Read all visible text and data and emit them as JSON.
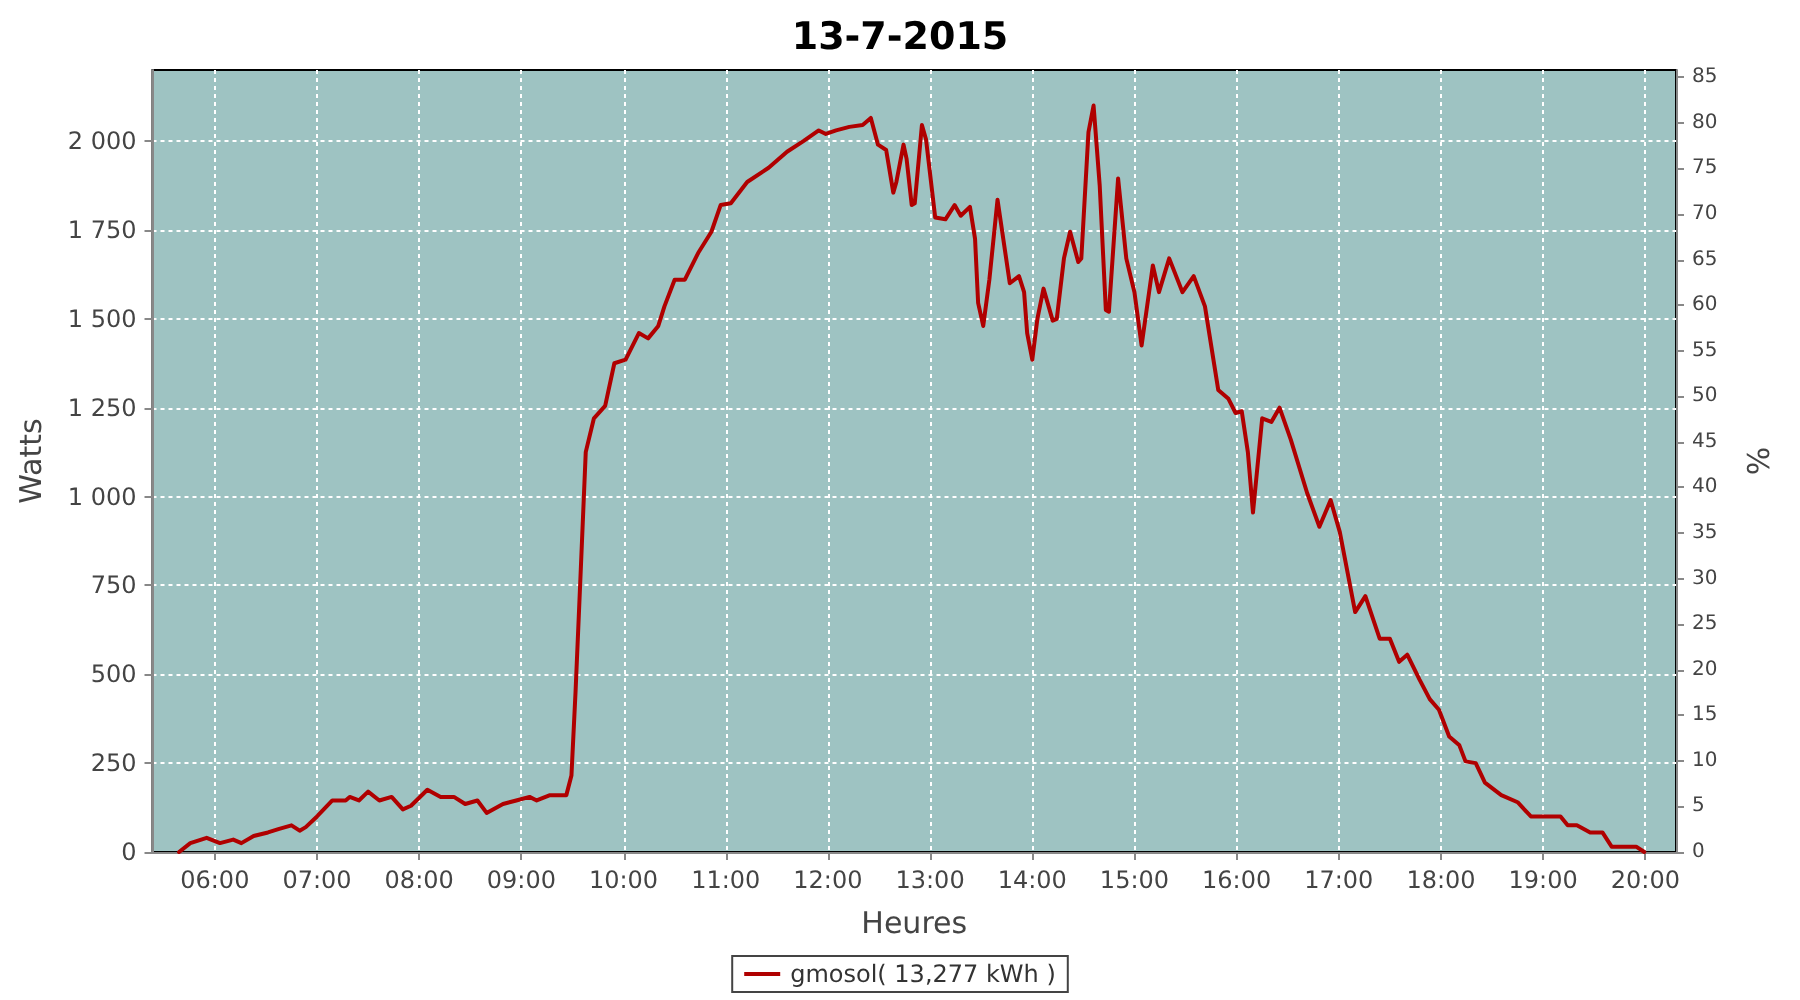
{
  "chart_data": {
    "type": "line",
    "title": "13-7-2015",
    "xlabel": "Heures",
    "ylabel": "Watts",
    "y2label": "%",
    "xlim": [
      5.39,
      20.3
    ],
    "xticks": [
      {
        "value": 6,
        "label": "06:00"
      },
      {
        "value": 7,
        "label": "07:00"
      },
      {
        "value": 8,
        "label": "08:00"
      },
      {
        "value": 9,
        "label": "09:00"
      },
      {
        "value": 10,
        "label": "10:00"
      },
      {
        "value": 11,
        "label": "11:00"
      },
      {
        "value": 12,
        "label": "12:00"
      },
      {
        "value": 13,
        "label": "13:00"
      },
      {
        "value": 14,
        "label": "14:00"
      },
      {
        "value": 15,
        "label": "15:00"
      },
      {
        "value": 16,
        "label": "16:00"
      },
      {
        "value": 17,
        "label": "17:00"
      },
      {
        "value": 18,
        "label": "18:00"
      },
      {
        "value": 19,
        "label": "19:00"
      },
      {
        "value": 20,
        "label": "20:00"
      }
    ],
    "ylim": [
      0,
      2200
    ],
    "yticks": [
      0,
      250,
      500,
      750,
      {
        "value": 1000,
        "label": "1 000"
      },
      {
        "value": 1250,
        "label": "1 250"
      },
      {
        "value": 1500,
        "label": "1 500"
      },
      {
        "value": 1750,
        "label": "1 750"
      },
      {
        "value": 2000,
        "label": "2 000"
      }
    ],
    "y2lim": [
      0,
      85.8
    ],
    "y2ticks": [
      0,
      5,
      10,
      15,
      20,
      25,
      30,
      35,
      40,
      45,
      50,
      55,
      60,
      65,
      70,
      75,
      80,
      85
    ],
    "grid": true,
    "legend": "bottom",
    "marker": "none",
    "line_style": "solid",
    "series": [
      {
        "name": "gmosol( 13,277 kWh )",
        "color": "#b00000",
        "x": [
          5.65,
          5.76,
          5.92,
          6.05,
          6.18,
          6.26,
          6.38,
          6.52,
          6.63,
          6.75,
          6.83,
          6.89,
          7.0,
          7.15,
          7.28,
          7.32,
          7.41,
          7.5,
          7.61,
          7.73,
          7.84,
          7.92,
          8.08,
          8.21,
          8.34,
          8.45,
          8.57,
          8.66,
          8.82,
          8.95,
          9.08,
          9.15,
          9.28,
          9.44,
          9.49,
          9.53,
          9.58,
          9.63,
          9.71,
          9.82,
          9.91,
          10.02,
          10.15,
          10.24,
          10.34,
          10.4,
          10.5,
          10.6,
          10.73,
          10.86,
          10.95,
          11.05,
          11.21,
          11.42,
          11.6,
          11.76,
          11.91,
          11.98,
          12.08,
          12.21,
          12.34,
          12.42,
          12.49,
          12.57,
          12.64,
          12.67,
          12.74,
          12.77,
          12.82,
          12.85,
          12.92,
          12.96,
          13.05,
          13.15,
          13.24,
          13.3,
          13.39,
          13.44,
          13.47,
          13.52,
          13.58,
          13.66,
          13.78,
          13.87,
          13.92,
          13.95,
          14.0,
          14.05,
          14.11,
          14.2,
          14.24,
          14.31,
          14.37,
          14.45,
          14.48,
          14.55,
          14.6,
          14.66,
          14.72,
          14.75,
          14.84,
          14.92,
          15.0,
          15.07,
          15.18,
          15.24,
          15.34,
          15.47,
          15.58,
          15.69,
          15.82,
          15.92,
          15.99,
          16.05,
          16.11,
          16.16,
          16.25,
          16.34,
          16.42,
          16.53,
          16.69,
          16.81,
          16.92,
          17.01,
          17.16,
          17.26,
          17.4,
          17.5,
          17.59,
          17.67,
          17.79,
          17.89,
          17.98,
          18.08,
          18.18,
          18.24,
          18.34,
          18.43,
          18.59,
          18.75,
          18.88,
          19.17,
          19.24,
          19.33,
          19.46,
          19.58,
          19.67,
          19.91,
          19.99
        ],
        "values": [
          0,
          25,
          40,
          25,
          35,
          25,
          45,
          55,
          65,
          75,
          60,
          70,
          100,
          145,
          145,
          155,
          145,
          170,
          145,
          155,
          120,
          130,
          175,
          155,
          155,
          135,
          145,
          110,
          135,
          145,
          155,
          145,
          160,
          160,
          215,
          450,
          785,
          1125,
          1220,
          1255,
          1375,
          1385,
          1460,
          1445,
          1480,
          1535,
          1610,
          1610,
          1685,
          1745,
          1820,
          1825,
          1885,
          1925,
          1970,
          2000,
          2030,
          2020,
          2030,
          2040,
          2045,
          2065,
          1990,
          1975,
          1855,
          1885,
          1990,
          1950,
          1820,
          1825,
          2045,
          2005,
          1785,
          1780,
          1820,
          1790,
          1815,
          1725,
          1545,
          1480,
          1610,
          1835,
          1600,
          1620,
          1575,
          1460,
          1385,
          1500,
          1585,
          1495,
          1500,
          1670,
          1745,
          1660,
          1670,
          2025,
          2100,
          1875,
          1525,
          1520,
          1895,
          1670,
          1575,
          1425,
          1650,
          1575,
          1670,
          1575,
          1620,
          1535,
          1300,
          1275,
          1235,
          1240,
          1125,
          955,
          1220,
          1210,
          1250,
          1160,
          1010,
          915,
          990,
          900,
          675,
          720,
          600,
          600,
          535,
          555,
          485,
          430,
          400,
          325,
          300,
          255,
          250,
          195,
          160,
          140,
          100,
          100,
          75,
          75,
          55,
          55,
          15,
          15,
          0
        ]
      }
    ]
  }
}
